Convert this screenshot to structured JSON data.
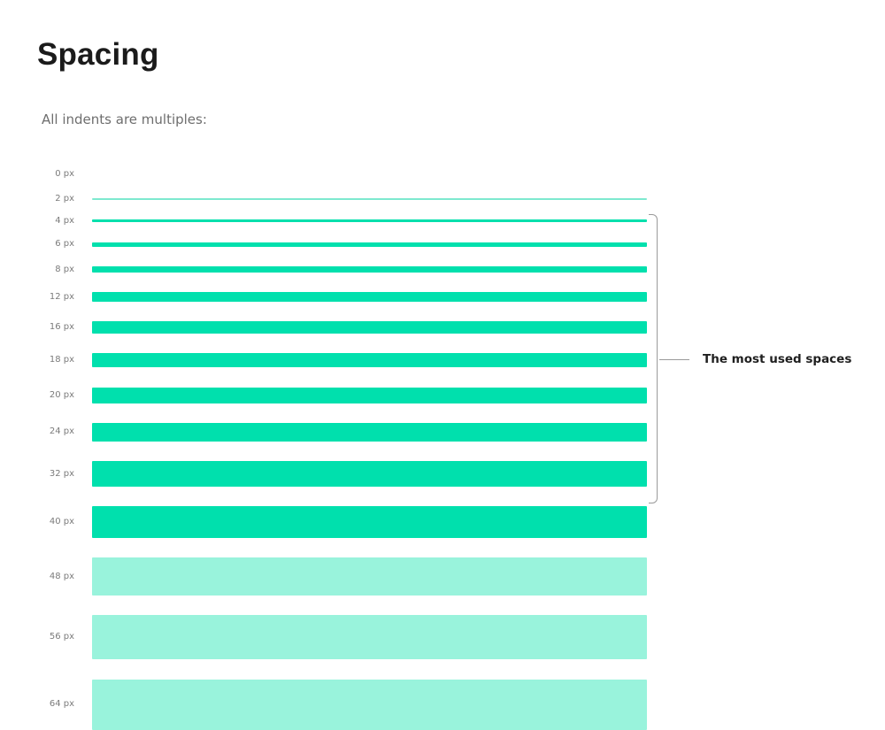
{
  "title": "Spacing",
  "intro": "All indents are multiples:",
  "highlight_group": {
    "label": "The most used spaces",
    "rows": [
      "4 px",
      "6 px",
      "8 px",
      "12 px",
      "16 px",
      "18 px",
      "20 px",
      "24 px",
      "32 px",
      "40 px"
    ]
  },
  "colors": {
    "primary": "#00e0ad",
    "light": "#99f3dc",
    "hairline": "#7ee9cf"
  },
  "spacings": [
    {
      "label": "0 px",
      "value": 0,
      "tone": "none"
    },
    {
      "label": "2 px",
      "value": 2,
      "tone": "hairline"
    },
    {
      "label": "4 px",
      "value": 4,
      "tone": "primary"
    },
    {
      "label": "6 px",
      "value": 6,
      "tone": "primary"
    },
    {
      "label": "8 px",
      "value": 8,
      "tone": "primary"
    },
    {
      "label": "12 px",
      "value": 12,
      "tone": "primary"
    },
    {
      "label": "16 px",
      "value": 16,
      "tone": "primary"
    },
    {
      "label": "18 px",
      "value": 18,
      "tone": "primary"
    },
    {
      "label": "20 px",
      "value": 20,
      "tone": "primary"
    },
    {
      "label": "24 px",
      "value": 24,
      "tone": "primary"
    },
    {
      "label": "32 px",
      "value": 32,
      "tone": "primary"
    },
    {
      "label": "40 px",
      "value": 40,
      "tone": "primary"
    },
    {
      "label": "48 px",
      "value": 48,
      "tone": "light"
    },
    {
      "label": "56 px",
      "value": 56,
      "tone": "light"
    },
    {
      "label": "64 px",
      "value": 64,
      "tone": "light"
    }
  ]
}
